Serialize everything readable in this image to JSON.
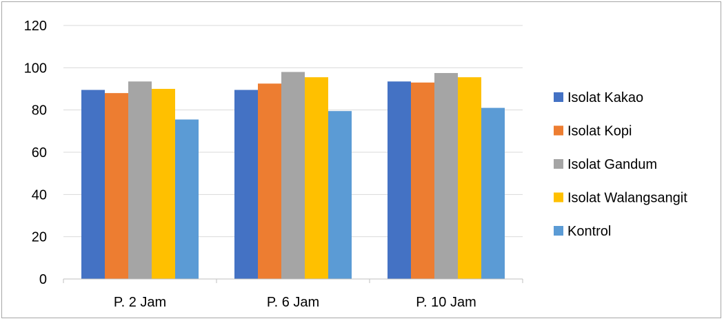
{
  "chart_data": {
    "type": "bar",
    "title": "",
    "xlabel": "",
    "ylabel": "",
    "categories": [
      "P. 2 Jam",
      "P. 6 Jam",
      "P. 10 Jam"
    ],
    "ylim": [
      0,
      120
    ],
    "yticks": [
      0,
      20,
      40,
      60,
      80,
      100,
      120
    ],
    "grid": true,
    "legend_position": "right",
    "series": [
      {
        "name": "Isolat Kakao",
        "color": "#4472c4",
        "values": [
          89.5,
          89.5,
          93.5
        ]
      },
      {
        "name": "Isolat Kopi",
        "color": "#ed7d31",
        "values": [
          88,
          92.5,
          93
        ]
      },
      {
        "name": "Isolat Gandum",
        "color": "#a5a5a5",
        "values": [
          93.5,
          98,
          97.5
        ]
      },
      {
        "name": "Isolat Walangsangit",
        "color": "#ffc000",
        "values": [
          90,
          95.5,
          95.5
        ]
      },
      {
        "name": "Kontrol",
        "color": "#5b9bd5",
        "values": [
          75.5,
          79.5,
          81
        ]
      }
    ]
  }
}
